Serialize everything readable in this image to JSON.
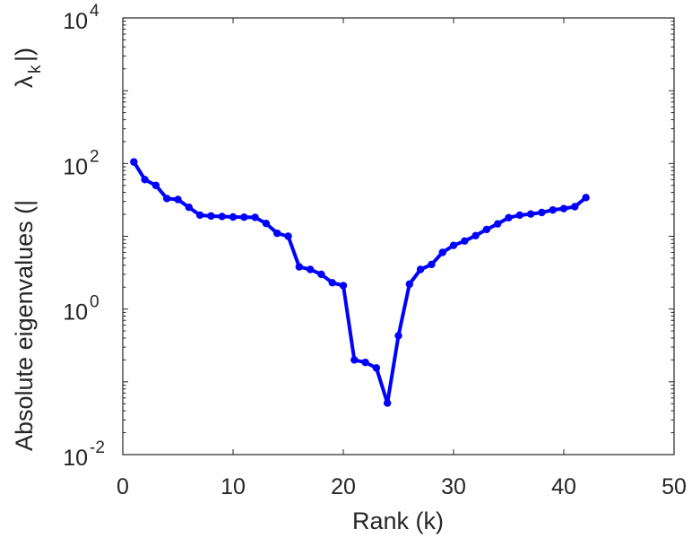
{
  "chart_data": {
    "type": "line",
    "title": "",
    "xlabel": "Rank (k)",
    "ylabel_main": "Absolute eigenvalues (|",
    "ylabel_lambda": "λ",
    "ylabel_sub": "k",
    "ylabel_tail": "|)",
    "x_scale": "linear",
    "y_scale": "log",
    "xlim": [
      0,
      50
    ],
    "ylim": [
      0.01,
      10000
    ],
    "x_ticks": [
      0,
      10,
      20,
      30,
      40,
      50
    ],
    "x_tick_labels": [
      "0",
      "10",
      "20",
      "30",
      "40",
      "50"
    ],
    "y_ticks": [
      0.01,
      1,
      100,
      10000
    ],
    "y_tick_labels": [
      {
        "base": "10",
        "exp": "-2"
      },
      {
        "base": "10",
        "exp": "0"
      },
      {
        "base": "10",
        "exp": "2"
      },
      {
        "base": "10",
        "exp": "4"
      }
    ],
    "grid": false,
    "line_color": "#0000ff",
    "series": [
      {
        "x": [
          1,
          2,
          3,
          4,
          5,
          6,
          7,
          8,
          9,
          10,
          11,
          12,
          13,
          14,
          15,
          16,
          17,
          18,
          19,
          20,
          21,
          22,
          23,
          24,
          25,
          26,
          27,
          28,
          29,
          30,
          31,
          32,
          33,
          34,
          35,
          36,
          37,
          38,
          39,
          40,
          41,
          42
        ],
        "y": [
          105,
          60,
          50,
          33,
          32,
          25,
          19.5,
          19,
          18.7,
          18.4,
          18.3,
          18.2,
          15,
          11,
          10,
          3.8,
          3.5,
          3,
          2.3,
          2.1,
          0.2,
          0.185,
          0.155,
          0.051,
          0.43,
          2.2,
          3.5,
          4.1,
          6,
          7.5,
          8.6,
          10.2,
          12.4,
          14.8,
          18,
          19.5,
          20.2,
          21.2,
          23,
          24,
          25.5,
          34
        ]
      }
    ]
  }
}
